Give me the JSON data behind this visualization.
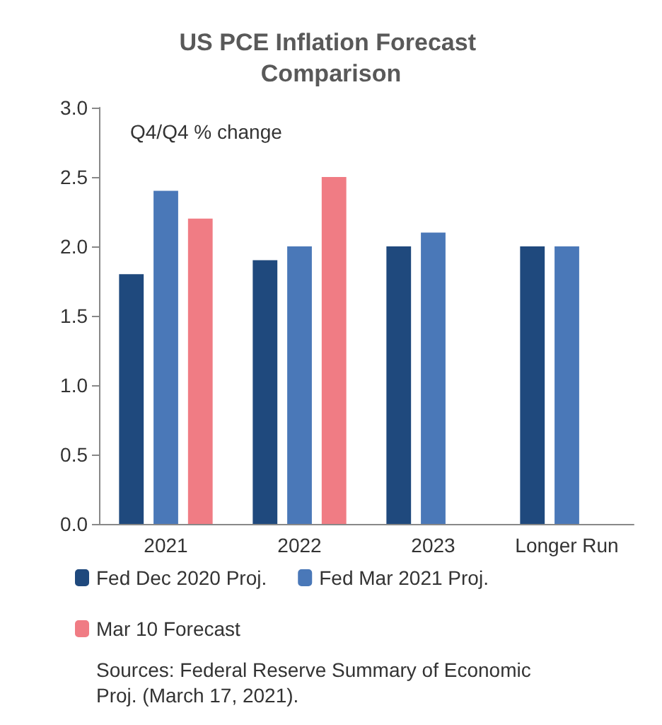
{
  "chart_data": {
    "type": "bar",
    "title": "US PCE Inflation Forecast Comparison",
    "subtitle": "Q4/Q4 % change",
    "categories": [
      "2021",
      "2022",
      "2023",
      "Longer Run"
    ],
    "series": [
      {
        "name": "Fed Dec 2020 Proj.",
        "color": "#1f497d",
        "values": [
          1.8,
          1.9,
          2.0,
          2.0
        ]
      },
      {
        "name": "Fed Mar 2021 Proj.",
        "color": "#4a78b8",
        "values": [
          2.4,
          2.0,
          2.1,
          2.0
        ]
      },
      {
        "name": "Mar 10 Forecast",
        "color": "#f07c84",
        "values": [
          2.2,
          2.5,
          null,
          null
        ]
      }
    ],
    "ylim": [
      0,
      3
    ],
    "yticks": [
      {
        "value": 0,
        "label": "0.0"
      },
      {
        "value": 0.5,
        "label": "0.5"
      },
      {
        "value": 1,
        "label": "1.0"
      },
      {
        "value": 1.5,
        "label": "1.5"
      },
      {
        "value": 2,
        "label": "2.0"
      },
      {
        "value": 2.5,
        "label": "2.5"
      },
      {
        "value": 3,
        "label": "3.0"
      }
    ],
    "grid": false,
    "legend": "bottom",
    "annotations": [
      "Sources: Federal Reserve Summary of Economic Proj. (March 17, 2021)."
    ]
  }
}
